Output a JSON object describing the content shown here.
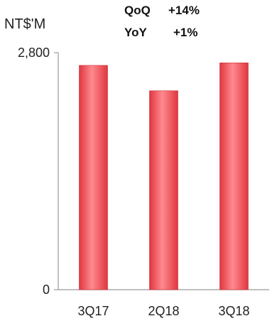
{
  "chart_data": {
    "type": "bar",
    "unit_label": "NT$'M",
    "annotations": [
      {
        "label": "QoQ",
        "value": "+14%"
      },
      {
        "label": "YoY",
        "value": "+1%"
      }
    ],
    "categories": [
      "3Q17",
      "2Q18",
      "3Q18"
    ],
    "values": [
      2650,
      2350,
      2680
    ],
    "ylim": [
      0,
      2800
    ],
    "yticks": [
      "0",
      "2,800"
    ],
    "grid": false,
    "bar_color": "#f2545b"
  }
}
